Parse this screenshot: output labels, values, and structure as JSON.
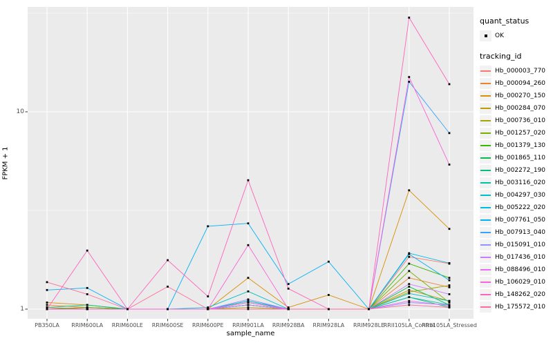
{
  "chart_data": {
    "type": "line",
    "xlabel": "sample_name",
    "ylabel": "FPKM + 1",
    "y_scale": "log10",
    "ylim": [
      1,
      35
    ],
    "grid": true,
    "panel_bg": "#EBEBEB",
    "grid_color": "#FFFFFF",
    "point_marker": {
      "shape": "square",
      "color": "#000000"
    },
    "legend_position": "right",
    "y_ticks": [
      {
        "label": "1",
        "value": 1
      },
      {
        "label": "10",
        "value": 10
      }
    ],
    "categories": [
      "PB350LA",
      "RRIM600LA",
      "RRIM600LE",
      "RRIM600SE",
      "RRIM600PE",
      "RRIM901LA",
      "RRIM928BA",
      "RRIM928LA",
      "RRIM928LE",
      "RRII105LA_Control",
      "RRII105LA_Stressed"
    ],
    "series": [
      {
        "name": "Hb_000003_770",
        "color": "#F8766D",
        "values": [
          1.02,
          1.0,
          1.0,
          1.0,
          1.0,
          1.05,
          1.0,
          1.0,
          1.0,
          1.84,
          1.7
        ]
      },
      {
        "name": "Hb_000094_260",
        "color": "#EA8331",
        "values": [
          1.05,
          1.02,
          1.0,
          1.0,
          1.0,
          1.08,
          1.0,
          1.0,
          1.0,
          1.44,
          1.29
        ]
      },
      {
        "name": "Hb_000270_150",
        "color": "#D89000",
        "values": [
          1.08,
          1.05,
          1.0,
          1.0,
          1.0,
          1.44,
          1.02,
          1.18,
          1.0,
          4.0,
          2.55
        ]
      },
      {
        "name": "Hb_000284_070",
        "color": "#C09B00",
        "values": [
          1.0,
          1.02,
          1.0,
          1.0,
          1.0,
          1.05,
          1.0,
          1.0,
          1.0,
          1.25,
          1.1
        ]
      },
      {
        "name": "Hb_000736_010",
        "color": "#A3A500",
        "values": [
          1.0,
          1.0,
          1.0,
          1.0,
          1.0,
          1.02,
          1.0,
          1.0,
          1.0,
          1.22,
          1.32
        ]
      },
      {
        "name": "Hb_001257_020",
        "color": "#7CAE00",
        "values": [
          1.0,
          1.0,
          1.0,
          1.0,
          1.0,
          1.05,
          1.0,
          1.0,
          1.0,
          1.56,
          1.08
        ]
      },
      {
        "name": "Hb_001379_130",
        "color": "#39B600",
        "values": [
          1.0,
          1.02,
          1.0,
          1.0,
          1.0,
          1.08,
          1.0,
          1.0,
          1.0,
          1.7,
          1.44
        ]
      },
      {
        "name": "Hb_001865_110",
        "color": "#00BB4E",
        "values": [
          1.0,
          1.0,
          1.0,
          1.0,
          1.0,
          1.1,
          1.0,
          1.0,
          1.0,
          1.3,
          1.05
        ]
      },
      {
        "name": "Hb_002272_190",
        "color": "#00BF7D",
        "values": [
          1.02,
          1.05,
          1.0,
          1.0,
          1.0,
          1.05,
          1.0,
          1.0,
          1.0,
          1.15,
          1.02
        ]
      },
      {
        "name": "Hb_003116_020",
        "color": "#00C1A3",
        "values": [
          1.0,
          1.0,
          1.0,
          1.0,
          1.0,
          1.05,
          1.0,
          1.0,
          1.0,
          1.15,
          1.05
        ]
      },
      {
        "name": "Hb_004297_030",
        "color": "#00BFC4",
        "values": [
          1.0,
          1.0,
          1.0,
          1.0,
          1.02,
          1.23,
          1.0,
          1.0,
          1.0,
          1.2,
          1.1
        ]
      },
      {
        "name": "Hb_005222_020",
        "color": "#00BAE0",
        "values": [
          1.0,
          1.0,
          1.0,
          1.0,
          1.0,
          1.1,
          1.0,
          1.0,
          1.0,
          1.92,
          1.71
        ]
      },
      {
        "name": "Hb_007761_050",
        "color": "#00B0F6",
        "values": [
          1.25,
          1.28,
          1.0,
          1.0,
          2.63,
          2.72,
          1.34,
          1.74,
          1.0,
          1.9,
          1.4
        ]
      },
      {
        "name": "Hb_007913_040",
        "color": "#35A2FF",
        "values": [
          1.0,
          1.0,
          1.0,
          1.0,
          1.0,
          1.05,
          1.0,
          1.0,
          1.0,
          14.2,
          7.8
        ]
      },
      {
        "name": "Hb_015091_010",
        "color": "#9590FF",
        "values": [
          1.0,
          1.0,
          1.0,
          1.0,
          1.0,
          1.12,
          1.0,
          1.0,
          1.0,
          1.08,
          1.05
        ]
      },
      {
        "name": "Hb_017436_010",
        "color": "#C77CFF",
        "values": [
          1.0,
          1.0,
          1.0,
          1.0,
          1.0,
          1.05,
          1.0,
          1.0,
          1.0,
          1.34,
          1.19
        ]
      },
      {
        "name": "Hb_088496_010",
        "color": "#E76BF3",
        "values": [
          1.0,
          1.0,
          1.0,
          1.0,
          1.0,
          1.08,
          1.0,
          1.0,
          1.0,
          1.1,
          1.04
        ]
      },
      {
        "name": "Hb_106029_010",
        "color": "#FA62DB",
        "values": [
          1.0,
          1.0,
          1.0,
          1.0,
          1.0,
          2.11,
          1.0,
          1.0,
          1.0,
          15.0,
          5.4
        ]
      },
      {
        "name": "Hb_148262_020",
        "color": "#FF62BC",
        "values": [
          1.0,
          1.98,
          1.0,
          1.77,
          1.16,
          4.5,
          1.27,
          1.0,
          1.0,
          30.0,
          13.8
        ]
      },
      {
        "name": "Hb_175572_010",
        "color": "#FF6A98",
        "values": [
          1.37,
          1.19,
          1.0,
          1.3,
          1.0,
          1.0,
          1.0,
          1.0,
          1.0,
          1.05,
          1.02
        ]
      }
    ]
  },
  "legend": {
    "quant_status": {
      "title": "quant_status",
      "items": [
        {
          "label": "OK",
          "marker": "point",
          "color": "#000000"
        }
      ]
    },
    "tracking_id": {
      "title": "tracking_id"
    }
  }
}
